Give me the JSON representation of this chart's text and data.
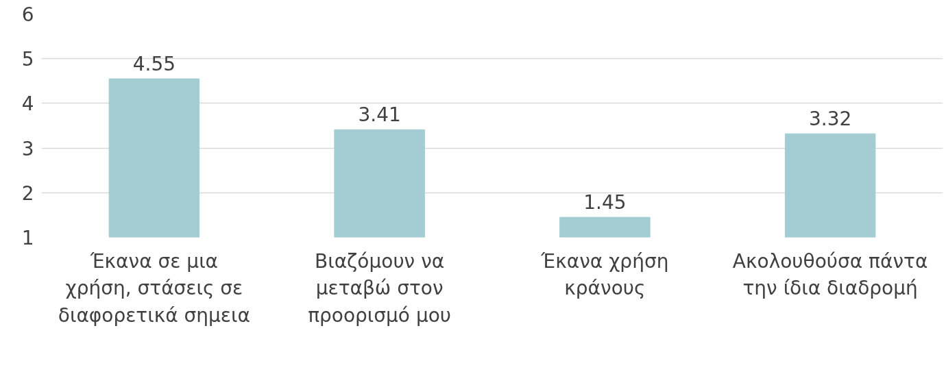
{
  "chart_data": {
    "type": "bar",
    "categories": [
      "Έκανα σε μια χρήση, στάσεις σε διαφορετικά σημεια",
      "Βιαζόμουν να μεταβώ στον προορισμό μου",
      "Έκανα χρήση κράνους",
      "Ακολουθούσα πάντα την ίδια διαδρομή"
    ],
    "values": [
      4.55,
      3.41,
      1.45,
      3.32
    ],
    "color": "#a3cdd2",
    "ylim": [
      1,
      6
    ],
    "yticks": [
      1,
      2,
      3,
      4,
      5,
      6
    ],
    "grid": "y",
    "data_labels": true
  }
}
